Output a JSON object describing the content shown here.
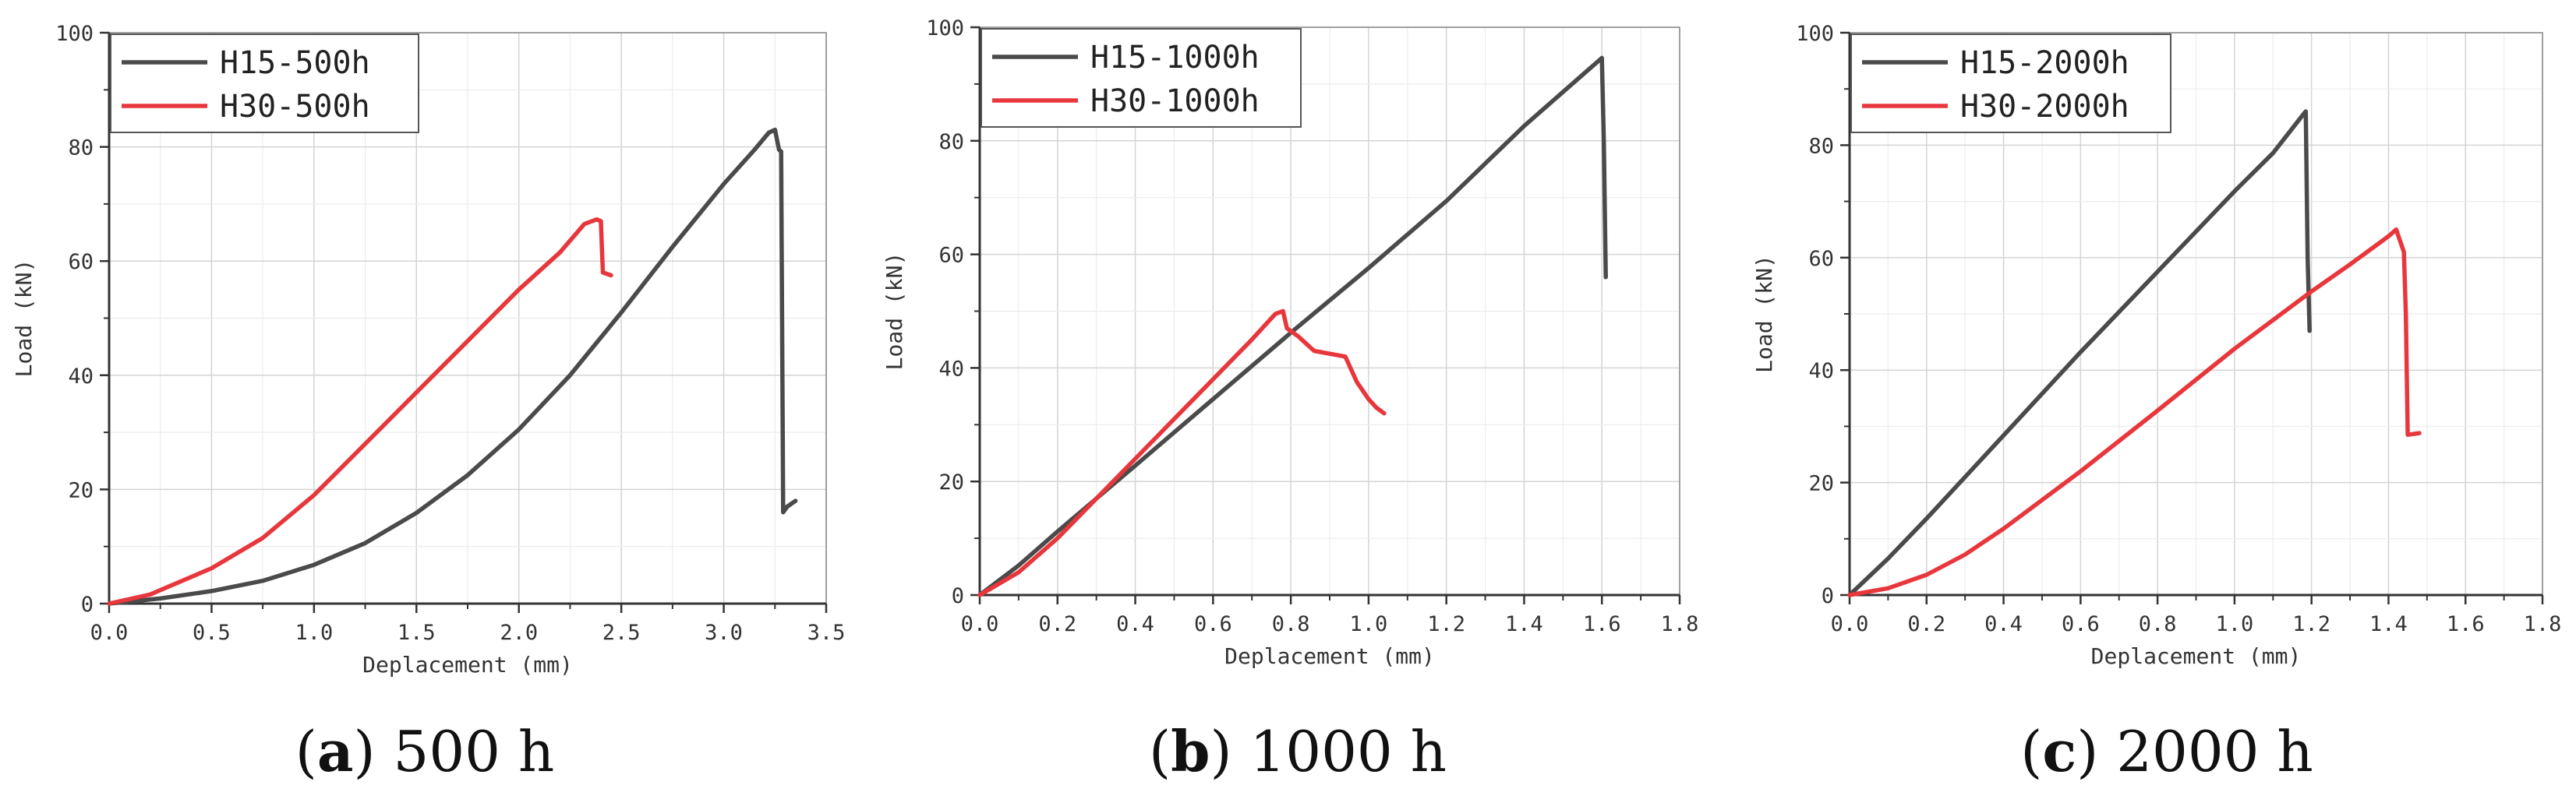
{
  "colors": {
    "h15": "#4a4a4a",
    "h30": "#e8373c",
    "grid": "#d4d4d4",
    "axis": "#333333"
  },
  "chart_data": [
    {
      "type": "line",
      "xlabel": "Deplacement (mm)",
      "ylabel": "Load (kN)",
      "xlim": [
        0,
        3.5
      ],
      "ylim": [
        0,
        100
      ],
      "xticks": [
        0,
        0.5,
        1.0,
        1.5,
        2.0,
        2.5,
        3.0,
        3.5
      ],
      "xtick_labels": [
        "0.0",
        "0.5",
        "1.0",
        "1.5",
        "2.0",
        "2.5",
        "3.0",
        "3.5"
      ],
      "yticks": [
        0,
        20,
        40,
        60,
        80,
        100
      ],
      "ytick_labels": [
        "0",
        "20",
        "40",
        "60",
        "80",
        "100"
      ],
      "grid": true,
      "legend_position": "top-left",
      "caption": {
        "letter": "a",
        "text": " 500 h",
        "open": "(",
        "close": ")"
      },
      "series": [
        {
          "name": "H15-500h",
          "color": "#4a4a4a",
          "points": [
            [
              0,
              0
            ],
            [
              0.25,
              0.9
            ],
            [
              0.5,
              2.2
            ],
            [
              0.75,
              4.0
            ],
            [
              1.0,
              6.8
            ],
            [
              1.25,
              10.6
            ],
            [
              1.5,
              15.9
            ],
            [
              1.75,
              22.5
            ],
            [
              2.0,
              30.5
            ],
            [
              2.25,
              40.0
            ],
            [
              2.5,
              51.0
            ],
            [
              2.75,
              62.5
            ],
            [
              3.0,
              73.5
            ],
            [
              3.15,
              79.5
            ],
            [
              3.22,
              82.5
            ],
            [
              3.25,
              83.0
            ],
            [
              3.27,
              79.5
            ],
            [
              3.28,
              79.2
            ],
            [
              3.29,
              16.0
            ],
            [
              3.31,
              17.0
            ],
            [
              3.35,
              18.0
            ]
          ]
        },
        {
          "name": "H30-500h",
          "color": "#e8373c",
          "points": [
            [
              0,
              0
            ],
            [
              0.2,
              1.6
            ],
            [
              0.5,
              6.2
            ],
            [
              0.75,
              11.5
            ],
            [
              1.0,
              19.0
            ],
            [
              1.25,
              28.0
            ],
            [
              1.5,
              37.0
            ],
            [
              1.75,
              46.0
            ],
            [
              2.0,
              55.0
            ],
            [
              2.2,
              61.5
            ],
            [
              2.32,
              66.5
            ],
            [
              2.38,
              67.3
            ],
            [
              2.4,
              67.0
            ],
            [
              2.41,
              58.0
            ],
            [
              2.45,
              57.5
            ]
          ]
        }
      ]
    },
    {
      "type": "line",
      "xlabel": "Deplacement (mm)",
      "ylabel": "Load (kN)",
      "xlim": [
        0,
        1.8
      ],
      "ylim": [
        0,
        100
      ],
      "xticks": [
        0,
        0.2,
        0.4,
        0.6,
        0.8,
        1.0,
        1.2,
        1.4,
        1.6,
        1.8
      ],
      "xtick_labels": [
        "0.0",
        "0.2",
        "0.4",
        "0.6",
        "0.8",
        "1.0",
        "1.2",
        "1.4",
        "1.6",
        "1.8"
      ],
      "yticks": [
        0,
        20,
        40,
        60,
        80,
        100
      ],
      "ytick_labels": [
        "0",
        "20",
        "40",
        "60",
        "80",
        "100"
      ],
      "grid": true,
      "legend_position": "top-left",
      "caption": {
        "letter": "b",
        "text": " 1000 h",
        "open": "(",
        "close": ")"
      },
      "series": [
        {
          "name": "H15-1000h",
          "color": "#4a4a4a",
          "points": [
            [
              0,
              0
            ],
            [
              0.1,
              5.2
            ],
            [
              0.2,
              11.2
            ],
            [
              0.4,
              22.8
            ],
            [
              0.6,
              34.5
            ],
            [
              0.8,
              46.2
            ],
            [
              1.0,
              57.6
            ],
            [
              1.2,
              69.4
            ],
            [
              1.4,
              82.6
            ],
            [
              1.6,
              94.6
            ],
            [
              1.605,
              80.0
            ],
            [
              1.61,
              56.0
            ]
          ]
        },
        {
          "name": "H30-1000h",
          "color": "#e8373c",
          "points": [
            [
              0,
              0
            ],
            [
              0.1,
              4.0
            ],
            [
              0.2,
              10.0
            ],
            [
              0.3,
              17.0
            ],
            [
              0.4,
              24.0
            ],
            [
              0.5,
              31.0
            ],
            [
              0.6,
              38.0
            ],
            [
              0.7,
              45.0
            ],
            [
              0.76,
              49.5
            ],
            [
              0.78,
              50.0
            ],
            [
              0.79,
              47.0
            ],
            [
              0.82,
              45.5
            ],
            [
              0.86,
              43.0
            ],
            [
              0.9,
              42.5
            ],
            [
              0.94,
              42.0
            ],
            [
              0.97,
              37.5
            ],
            [
              1.0,
              34.5
            ],
            [
              1.02,
              33.0
            ],
            [
              1.04,
              32.0
            ]
          ]
        }
      ]
    },
    {
      "type": "line",
      "xlabel": "Deplacement (mm)",
      "ylabel": "Load (kN)",
      "xlim": [
        0,
        1.8
      ],
      "ylim": [
        0,
        100
      ],
      "xticks": [
        0,
        0.2,
        0.4,
        0.6,
        0.8,
        1.0,
        1.2,
        1.4,
        1.6,
        1.8
      ],
      "xtick_labels": [
        "0.0",
        "0.2",
        "0.4",
        "0.6",
        "0.8",
        "1.0",
        "1.2",
        "1.4",
        "1.6",
        "1.8"
      ],
      "yticks": [
        0,
        20,
        40,
        60,
        80,
        100
      ],
      "ytick_labels": [
        "0",
        "20",
        "40",
        "60",
        "80",
        "100"
      ],
      "grid": true,
      "legend_position": "top-left",
      "caption": {
        "letter": "c",
        "text": " 2000 h",
        "open": "(",
        "close": ")"
      },
      "series": [
        {
          "name": "H15-2000h",
          "color": "#4a4a4a",
          "points": [
            [
              0,
              0
            ],
            [
              0.1,
              6.5
            ],
            [
              0.2,
              13.6
            ],
            [
              0.4,
              28.4
            ],
            [
              0.6,
              43.2
            ],
            [
              0.8,
              57.5
            ],
            [
              1.0,
              71.8
            ],
            [
              1.1,
              78.6
            ],
            [
              1.18,
              85.6
            ],
            [
              1.185,
              86.0
            ],
            [
              1.19,
              60.0
            ],
            [
              1.195,
              47.0
            ]
          ]
        },
        {
          "name": "H30-2000h",
          "color": "#e8373c",
          "points": [
            [
              0,
              0
            ],
            [
              0.1,
              1.2
            ],
            [
              0.2,
              3.6
            ],
            [
              0.3,
              7.2
            ],
            [
              0.4,
              11.8
            ],
            [
              0.6,
              22.0
            ],
            [
              0.8,
              32.8
            ],
            [
              1.0,
              43.8
            ],
            [
              1.2,
              54.0
            ],
            [
              1.3,
              58.8
            ],
            [
              1.4,
              63.8
            ],
            [
              1.42,
              65.0
            ],
            [
              1.44,
              61.0
            ],
            [
              1.445,
              50.0
            ],
            [
              1.45,
              28.5
            ],
            [
              1.48,
              28.8
            ]
          ]
        }
      ]
    }
  ]
}
